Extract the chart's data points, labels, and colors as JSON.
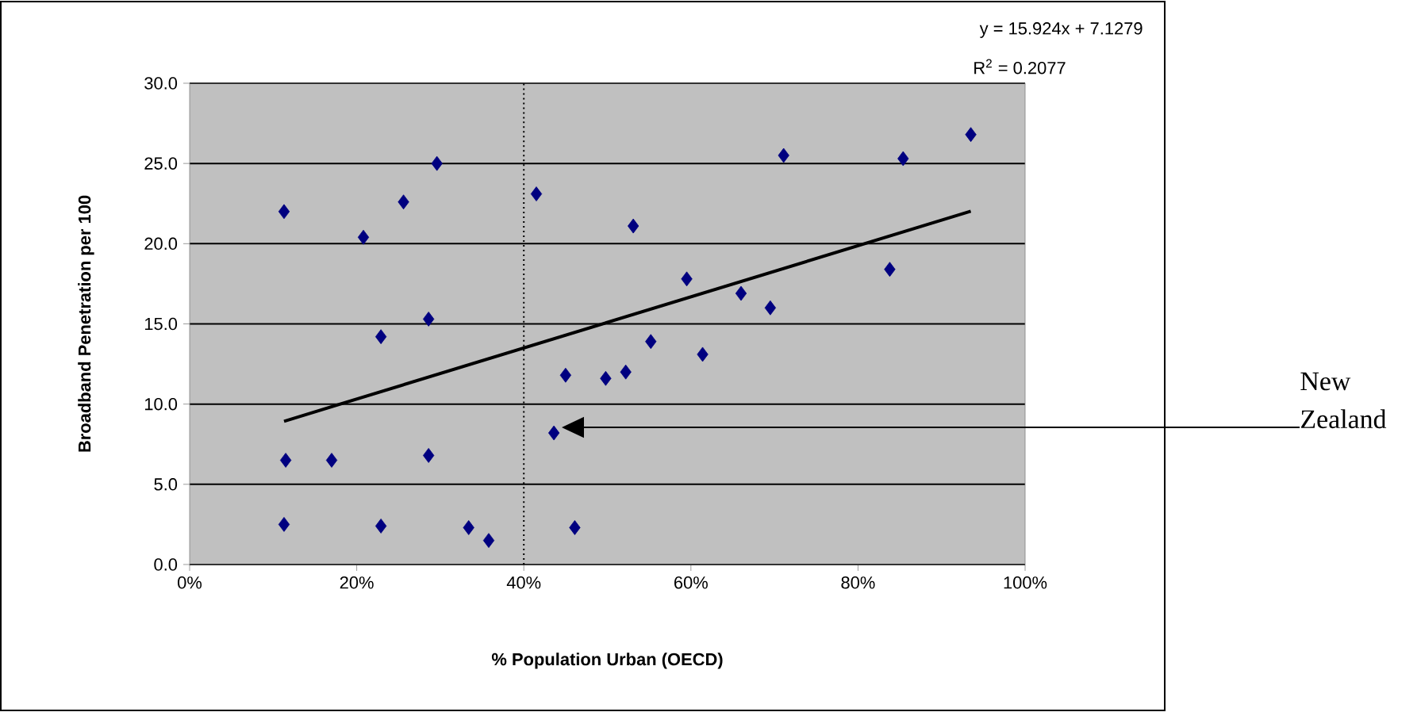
{
  "chart_data": {
    "type": "scatter",
    "xlabel": "% Population Urban (OECD)",
    "ylabel": "Broadband Penetration per 100",
    "series": [
      {
        "type": "scatter",
        "color": "#000080",
        "marker": "diamond",
        "x": [
          0.113,
          0.208,
          0.256,
          0.296,
          0.415,
          0.286,
          0.229,
          0.45,
          0.498,
          0.436,
          0.115,
          0.17,
          0.286,
          0.113,
          0.229,
          0.334,
          0.358,
          0.461,
          0.531,
          0.522,
          0.552,
          0.595,
          0.614,
          0.66,
          0.695,
          0.711,
          0.838,
          0.854,
          0.935
        ],
        "values": [
          22.0,
          20.4,
          22.6,
          25.0,
          23.1,
          15.3,
          14.2,
          11.8,
          11.6,
          8.2,
          6.5,
          6.5,
          6.8,
          2.5,
          2.4,
          2.3,
          1.5,
          2.3,
          21.1,
          12.0,
          13.9,
          17.8,
          13.1,
          16.9,
          16.0,
          25.5,
          18.4,
          25.3,
          26.8
        ]
      },
      {
        "type": "line",
        "color": "#000000",
        "x": [
          0.113,
          0.935
        ],
        "values": [
          8.93,
          22.02
        ]
      }
    ],
    "xlim": [
      0,
      1
    ],
    "ylim": [
      0,
      30
    ],
    "xticks": [
      {
        "value": 0,
        "label": "0%"
      },
      {
        "value": 0.2,
        "label": "20%"
      },
      {
        "value": 0.4,
        "label": "40%"
      },
      {
        "value": 0.6,
        "label": "60%"
      },
      {
        "value": 0.8,
        "label": "80%"
      },
      {
        "value": 1,
        "label": "100%"
      }
    ],
    "yticks": [
      {
        "value": 0,
        "label": "0.0"
      },
      {
        "value": 5,
        "label": "5.0"
      },
      {
        "value": 10,
        "label": "10.0"
      },
      {
        "value": 15,
        "label": "15.0"
      },
      {
        "value": 20,
        "label": "20.0"
      },
      {
        "value": 25,
        "label": "25.0"
      },
      {
        "value": 30,
        "label": "30.0"
      }
    ],
    "grid": "y",
    "ref_lines": [
      {
        "axis": "x",
        "value": 0.4,
        "line_style": "dotted",
        "color": "#000000"
      }
    ],
    "annotations": [
      "y = 15.924x + 7.1279",
      "R$^{2}$ = 0.2077",
      "New Zealand"
    ]
  }
}
